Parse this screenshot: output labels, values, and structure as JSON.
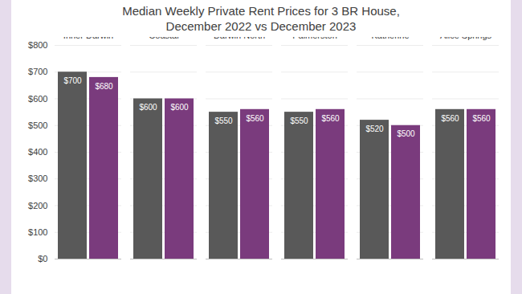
{
  "chart_data": {
    "type": "bar",
    "title": "Median Weekly Private Rent Prices for 3 BR House,\nDecember 2022 vs December 2023",
    "categories": [
      "Inner Darwin",
      "Darwin North Coastal",
      "Darwin North",
      "Palmerston",
      "Katherine",
      "Alice Springs"
    ],
    "series": [
      {
        "name": "December 2022",
        "color": "#595959",
        "values": [
          700,
          600,
          550,
          550,
          520,
          560
        ],
        "value_labels": [
          "$700",
          "$600",
          "$550",
          "$550",
          "$520",
          "$560"
        ]
      },
      {
        "name": "December 2023",
        "color": "#7a3b7d",
        "values": [
          680,
          600,
          560,
          560,
          500,
          560
        ],
        "value_labels": [
          "$680",
          "$600",
          "$560",
          "$560",
          "$500",
          "$560"
        ]
      }
    ],
    "ylim": [
      0,
      800
    ],
    "yticks": [
      {
        "value": 0,
        "label": "$0"
      },
      {
        "value": 100,
        "label": "$100"
      },
      {
        "value": 200,
        "label": "$200"
      },
      {
        "value": 300,
        "label": "$300"
      },
      {
        "value": 400,
        "label": "$400"
      },
      {
        "value": 500,
        "label": "$500"
      },
      {
        "value": 600,
        "label": "$600"
      },
      {
        "value": 700,
        "label": "$700"
      },
      {
        "value": 800,
        "label": "$800"
      }
    ],
    "grid": true,
    "data_labels": true
  }
}
